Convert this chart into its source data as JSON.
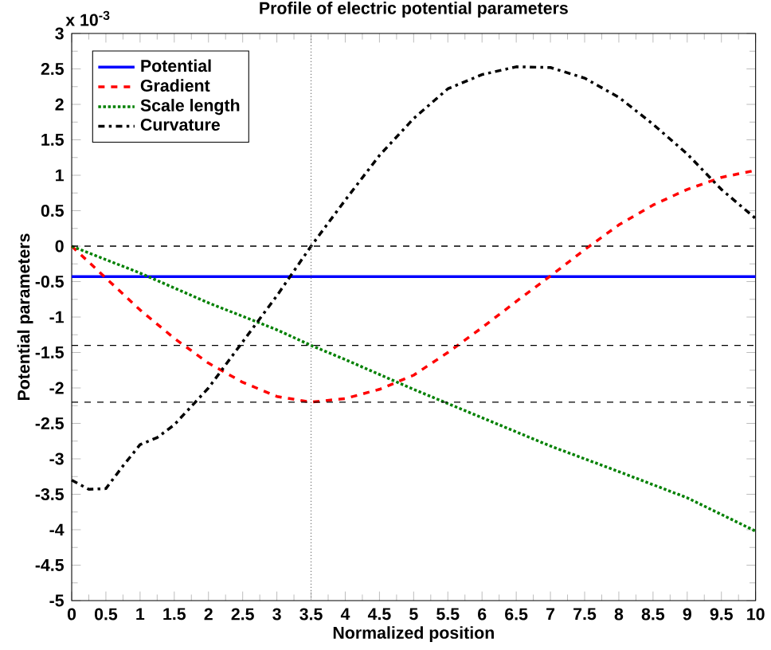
{
  "chart_data": {
    "type": "line",
    "title": "Profile of electric potential parameters",
    "xlabel": "Normalized position",
    "ylabel": "Potential parameters",
    "annotations": [
      "x 10$^{-3}$"
    ],
    "xlim": [
      0,
      10
    ],
    "ylim": [
      -5,
      3
    ],
    "xticks": [
      0,
      0.5,
      1,
      1.5,
      2,
      2.5,
      3,
      3.5,
      4,
      4.5,
      5,
      5.5,
      6,
      6.5,
      7,
      7.5,
      8,
      8.5,
      9,
      9.5,
      10
    ],
    "yticks": [
      -5,
      -4.5,
      -4,
      -3.5,
      -3,
      -2.5,
      -2,
      -1.5,
      -1,
      -0.5,
      0,
      0.5,
      1,
      1.5,
      2,
      2.5,
      3
    ],
    "legend": "top left",
    "marker": "none",
    "grid": false,
    "ref_lines": [
      {
        "axis": "y",
        "value": 0,
        "label": null,
        "color": "#000000",
        "line_style": "dashed"
      },
      {
        "axis": "y",
        "value": -1.4,
        "label": null,
        "color": "#000000",
        "line_style": "dashed"
      },
      {
        "axis": "y",
        "value": -2.2,
        "label": null,
        "color": "#000000",
        "line_style": "dashed"
      },
      {
        "axis": "x",
        "value": 3.5,
        "label": null,
        "color": "#808080",
        "line_style": "dotted"
      }
    ],
    "series": [
      {
        "name": "Potential",
        "color": "#0000ff",
        "line_style": "solid",
        "x": [
          0,
          10
        ],
        "values": [
          -0.43,
          -0.43
        ]
      },
      {
        "name": "Gradient",
        "color": "#ff0000",
        "line_style": "dashed",
        "x": [
          0,
          0.5,
          1,
          1.5,
          2,
          2.5,
          3,
          3.5,
          4,
          4.5,
          5,
          5.5,
          6,
          6.5,
          7,
          7.5,
          8,
          8.5,
          9,
          9.5,
          10
        ],
        "values": [
          0,
          -0.45,
          -0.9,
          -1.3,
          -1.65,
          -1.92,
          -2.12,
          -2.2,
          -2.15,
          -2.02,
          -1.82,
          -1.5,
          -1.15,
          -0.78,
          -0.42,
          -0.05,
          0.3,
          0.58,
          0.8,
          0.97,
          1.07
        ]
      },
      {
        "name": "Scale length",
        "color": "#008000",
        "line_style": "dotted",
        "x": [
          0,
          1,
          2,
          3,
          3.5,
          4,
          5,
          6,
          7,
          8,
          9,
          10
        ],
        "values": [
          0,
          -0.38,
          -0.8,
          -1.18,
          -1.4,
          -1.6,
          -2.02,
          -2.42,
          -2.82,
          -3.18,
          -3.55,
          -4.02
        ]
      },
      {
        "name": "Curvature",
        "color": "#000000",
        "line_style": "dashdot",
        "x": [
          0,
          0.25,
          0.5,
          0.75,
          1,
          1.25,
          1.5,
          2,
          2.5,
          3,
          3.5,
          4,
          4.5,
          5,
          5.5,
          6,
          6.5,
          7,
          7.5,
          8,
          8.5,
          9,
          9.5,
          10
        ],
        "values": [
          -3.3,
          -3.43,
          -3.42,
          -3.1,
          -2.8,
          -2.7,
          -2.52,
          -2.0,
          -1.35,
          -0.7,
          0,
          0.65,
          1.28,
          1.8,
          2.22,
          2.42,
          2.53,
          2.52,
          2.37,
          2.1,
          1.72,
          1.3,
          0.8,
          0.39
        ]
      }
    ]
  }
}
